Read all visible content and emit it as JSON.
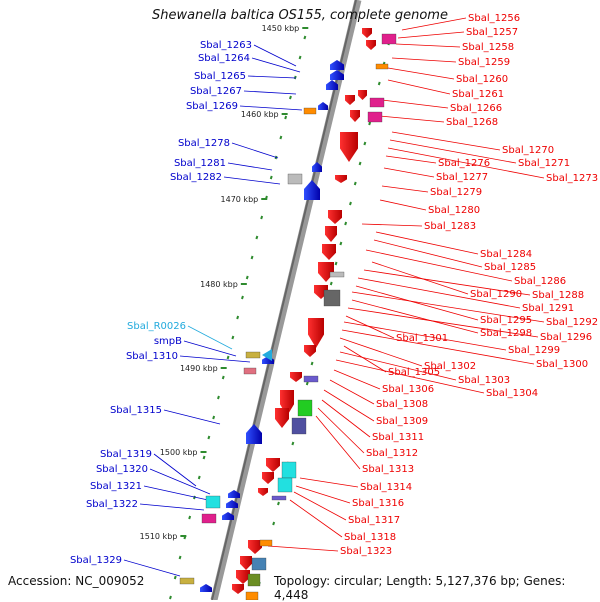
{
  "title": "Shewanella baltica OS155, complete genome",
  "accession": "Accession: NC_009052",
  "topology": "Topology: circular; Length: 5,127,376 bp; Genes: 4,448",
  "colors": {
    "backbone": "#777777",
    "tick": "#2e8b2e",
    "left_labels": "#0000cc",
    "right_labels": "#ee0000",
    "rna_label": "#22aadd"
  },
  "kbp_ticks": [
    "1450 kbp",
    "1460 kbp",
    "1470 kbp",
    "1480 kbp",
    "1490 kbp",
    "1500 kbp",
    "1510 kbp"
  ],
  "left_genes": [
    {
      "label": "Sbal_1263",
      "color": "#0000cc"
    },
    {
      "label": "Sbal_1264",
      "color": "#0000cc"
    },
    {
      "label": "Sbal_1265",
      "color": "#0000cc"
    },
    {
      "label": "Sbal_1267",
      "color": "#0000cc"
    },
    {
      "label": "Sbal_1269",
      "color": "#0000cc"
    },
    {
      "label": "Sbal_1278",
      "color": "#0000cc"
    },
    {
      "label": "Sbal_1281",
      "color": "#0000cc"
    },
    {
      "label": "Sbal_1282",
      "color": "#0000cc"
    },
    {
      "label": "Sbal_R0026",
      "color": "#22aadd"
    },
    {
      "label": "smpB",
      "color": "#0000cc"
    },
    {
      "label": "Sbal_1310",
      "color": "#0000cc"
    },
    {
      "label": "Sbal_1315",
      "color": "#0000cc"
    },
    {
      "label": "Sbal_1319",
      "color": "#0000cc"
    },
    {
      "label": "Sbal_1320",
      "color": "#0000cc"
    },
    {
      "label": "Sbal_1321",
      "color": "#0000cc"
    },
    {
      "label": "Sbal_1322",
      "color": "#0000cc"
    },
    {
      "label": "Sbal_1329",
      "color": "#0000cc"
    }
  ],
  "right_genes": [
    "Sbal_1256",
    "Sbal_1257",
    "Sbal_1258",
    "Sbal_1259",
    "Sbal_1260",
    "Sbal_1261",
    "Sbal_1266",
    "Sbal_1268",
    "Sbal_1270",
    "Sbal_1271",
    "Sbal_1273",
    "Sbal_1276",
    "Sbal_1277",
    "Sbal_1279",
    "Sbal_1280",
    "Sbal_1283",
    "Sbal_1284",
    "Sbal_1285",
    "Sbal_1286",
    "Sbal_1290",
    "Sbal_1288",
    "Sbal_1291",
    "Sbal_1295",
    "Sbal_1292",
    "Sbal_1298",
    "Sbal_1296",
    "Sbal_1301",
    "Sbal_1299",
    "Sbal_1300",
    "Sbal_1302",
    "Sbal_1305",
    "Sbal_1303",
    "Sbal_1304",
    "Sbal_1306",
    "Sbal_1308",
    "Sbal_1309",
    "Sbal_1311",
    "Sbal_1312",
    "Sbal_1313",
    "Sbal_1314",
    "Sbal_1316",
    "Sbal_1317",
    "Sbal_1318",
    "Sbal_1323"
  ]
}
